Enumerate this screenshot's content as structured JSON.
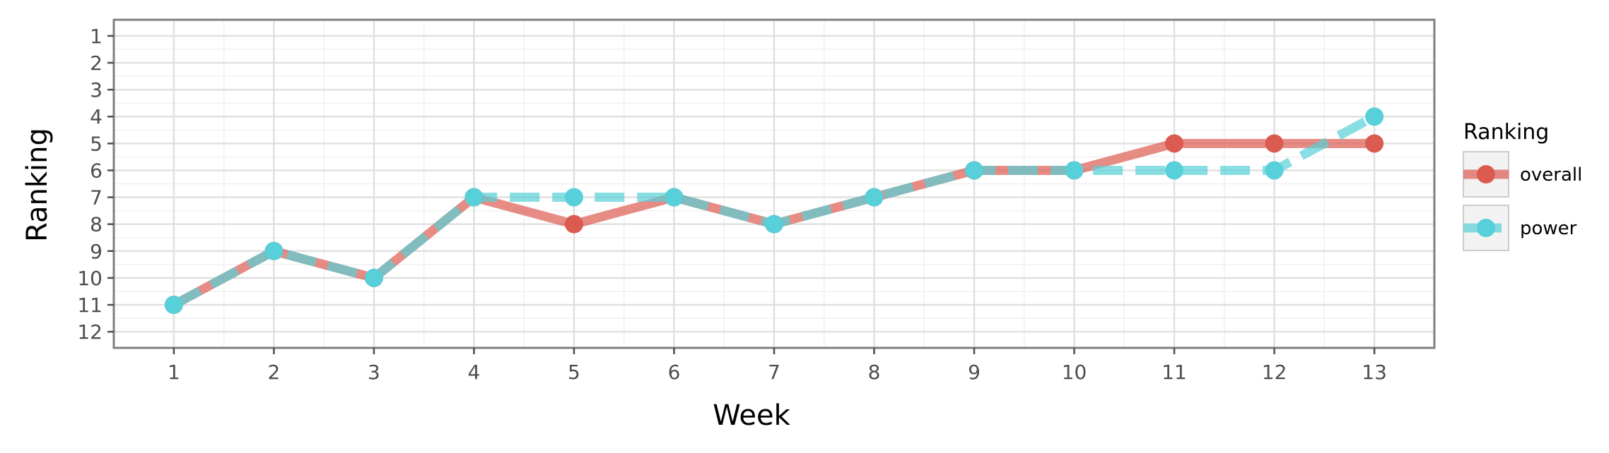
{
  "chart_data": {
    "type": "line",
    "title": "",
    "xlabel": "Week",
    "ylabel": "Ranking",
    "x": [
      1,
      2,
      3,
      4,
      5,
      6,
      7,
      8,
      9,
      10,
      11,
      12,
      13
    ],
    "x_ticks": [
      "1",
      "2",
      "3",
      "4",
      "5",
      "6",
      "7",
      "8",
      "9",
      "10",
      "11",
      "12",
      "13"
    ],
    "y_ticks": [
      "1",
      "2",
      "3",
      "4",
      "5",
      "6",
      "7",
      "8",
      "9",
      "10",
      "11",
      "12"
    ],
    "xlim": [
      0.4,
      13.6
    ],
    "ylim": [
      12.6,
      0.4
    ],
    "y_reversed": true,
    "grid": true,
    "legend": {
      "title": "Ranking",
      "placement": "right"
    },
    "series": [
      {
        "name": "overall",
        "values": [
          11,
          9,
          10,
          7,
          8,
          7,
          8,
          7,
          6,
          6,
          5,
          5,
          5
        ],
        "color": "#DB5B50",
        "line_style": "solid"
      },
      {
        "name": "power",
        "values": [
          11,
          9,
          10,
          7,
          7,
          7,
          8,
          7,
          6,
          6,
          6,
          6,
          4
        ],
        "color": "#57D0D9",
        "line_style": "dashed"
      }
    ]
  }
}
